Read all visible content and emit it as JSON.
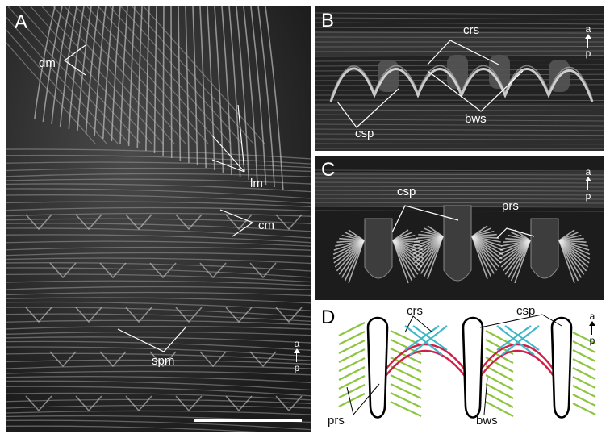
{
  "panels": {
    "a": {
      "label": "A",
      "labels": {
        "dm": "dm",
        "lm": "lm",
        "cm": "cm",
        "spm": "spm"
      }
    },
    "b": {
      "label": "B",
      "labels": {
        "crs": "crs",
        "csp": "csp",
        "bws": "bws"
      }
    },
    "c": {
      "label": "C",
      "labels": {
        "csp": "csp",
        "prs": "prs"
      }
    },
    "d": {
      "label": "D",
      "labels": {
        "crs": "crs",
        "csp": "csp",
        "prs": "prs",
        "bws": "bws"
      }
    }
  },
  "orientation": {
    "anterior": "a",
    "posterior": "p"
  },
  "colors": {
    "cilia_rows": "#3fb8c8",
    "body_wall": "#d0204a",
    "posterior_rows": "#8cc63f",
    "spines": "#000000"
  }
}
